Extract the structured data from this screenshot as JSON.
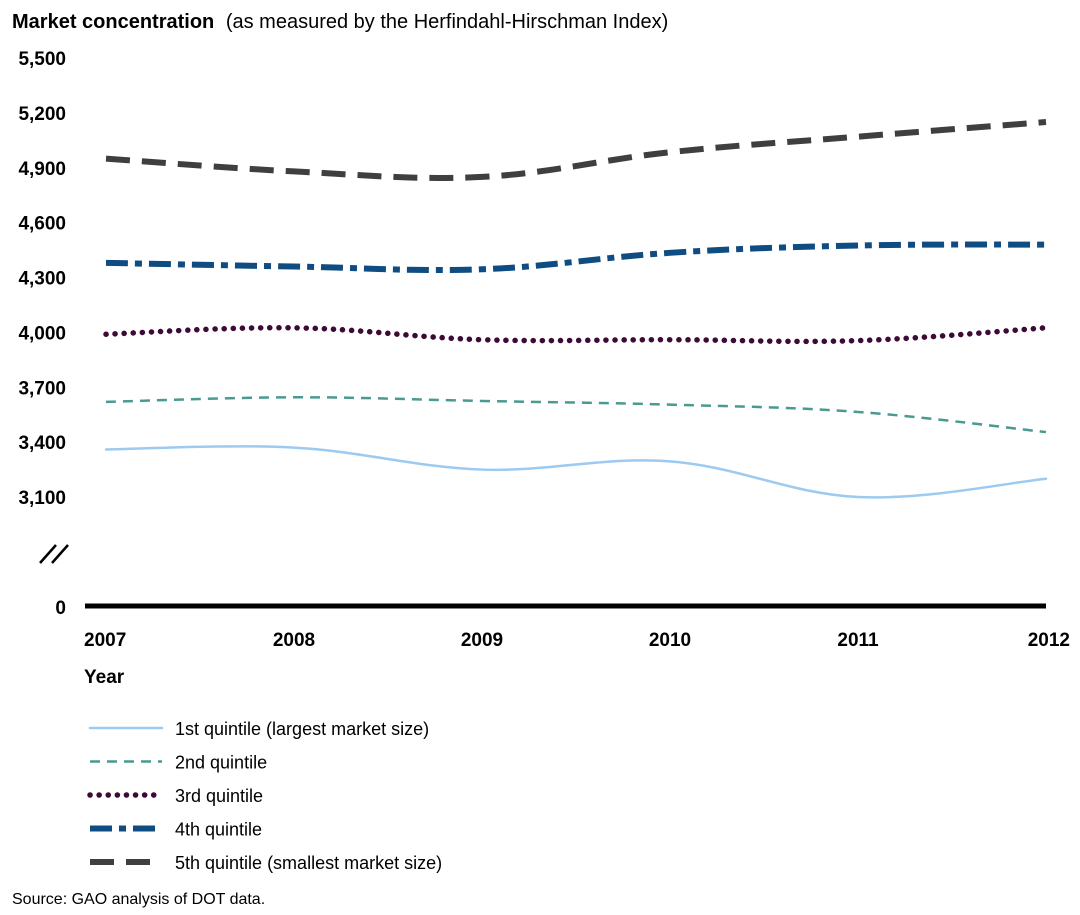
{
  "chart_data": {
    "type": "line",
    "title_bold": "Market concentration",
    "title_rest": "(as measured by the Herfindahl-Hirschman Index)",
    "xlabel": "Year",
    "ylabel": "",
    "x": [
      "2007",
      "2008",
      "2009",
      "2010",
      "2011",
      "2012"
    ],
    "y_ticks": [
      "5,500",
      "5,200",
      "4,900",
      "4,600",
      "4,300",
      "4,000",
      "3,700",
      "3,400",
      "3,100"
    ],
    "y_tick_values": [
      5500,
      5200,
      4900,
      4600,
      4300,
      4000,
      3700,
      3400,
      3100
    ],
    "y_zero_label": "0",
    "ylim": [
      3100,
      5500
    ],
    "axis_break": true,
    "grid": false,
    "legend_position": "bottom",
    "series": [
      {
        "name": "1st quintile (largest market size)",
        "values": [
          3360,
          3370,
          3250,
          3295,
          3100,
          3200
        ],
        "color": "#9ccaf0",
        "style": "solid"
      },
      {
        "name": "2nd quintile",
        "values": [
          3620,
          3645,
          3625,
          3605,
          3565,
          3455
        ],
        "color": "#4a9a90",
        "style": "dashed"
      },
      {
        "name": "3rd quintile",
        "values": [
          3990,
          4025,
          3960,
          3960,
          3955,
          4025
        ],
        "color": "#3d0a35",
        "style": "dotted"
      },
      {
        "name": "4th quintile",
        "values": [
          4380,
          4360,
          4345,
          4435,
          4475,
          4480
        ],
        "color": "#0f4c81",
        "style": "dashdot"
      },
      {
        "name": "5th quintile (smallest market size)",
        "values": [
          4950,
          4880,
          4850,
          4985,
          5070,
          5150
        ],
        "color": "#3f3f3f",
        "style": "longdash"
      }
    ],
    "source": "Source: GAO analysis of DOT data."
  }
}
